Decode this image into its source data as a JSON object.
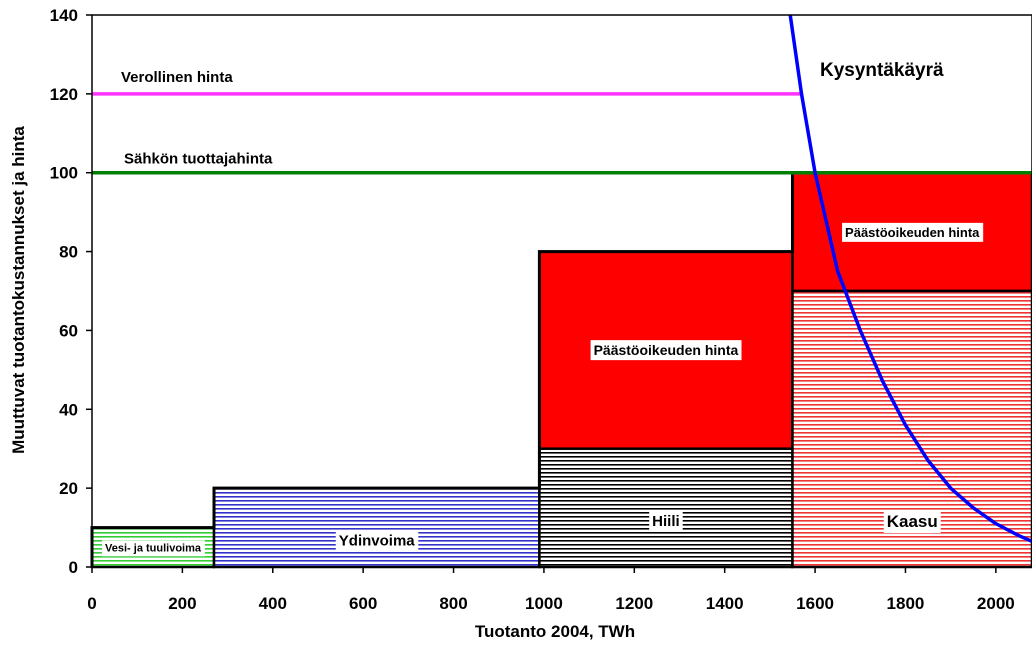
{
  "chart_data": {
    "type": "step-area",
    "xlabel": "Tuotanto 2004, TWh",
    "ylabel": "Muuttuvat tuotantokustannukset ja hinta",
    "xlim": [
      0,
      2080
    ],
    "ylim": [
      0,
      140
    ],
    "x_ticks": [
      0,
      200,
      400,
      600,
      800,
      1000,
      1200,
      1400,
      1600,
      1800,
      2000
    ],
    "y_ticks": [
      0,
      20,
      40,
      60,
      80,
      100,
      120,
      140
    ],
    "grid": false,
    "segments": [
      {
        "name": "Vesi- ja tuulivoima",
        "x0": 0,
        "x1": 270,
        "base": 10,
        "emission": 0,
        "color": "#33cc33",
        "base_label": "Vesi- ja tuulivoima",
        "emission_label": ""
      },
      {
        "name": "Ydinvoima",
        "x0": 270,
        "x1": 990,
        "base": 20,
        "emission": 0,
        "color": "#3333cc",
        "base_label": "Ydinvoima",
        "emission_label": ""
      },
      {
        "name": "Hiili",
        "x0": 990,
        "x1": 1550,
        "base": 30,
        "emission": 50,
        "color": "#000000",
        "base_label": "Hiili",
        "emission_label": "Päästöoikeuden hinta"
      },
      {
        "name": "Kaasu",
        "x0": 1550,
        "x1": 2080,
        "base": 70,
        "emission": 30,
        "color": "#ee3333",
        "base_label": "Kaasu",
        "emission_label": "Päästöoikeuden hinta"
      }
    ],
    "emission_color": "#ff0000",
    "lines": [
      {
        "label": "Verollinen hinta",
        "y": 120,
        "x0": 0,
        "x1": 1570,
        "color": "#ff33ff"
      },
      {
        "label": "Sähkön tuottajahinta",
        "y": 100,
        "x0": 0,
        "x1": 2080,
        "color": "#008000"
      }
    ],
    "demand_curve": {
      "label": "Kysyntäkäyrä",
      "color": "#0000ff",
      "points": [
        [
          1545,
          140
        ],
        [
          1570,
          120
        ],
        [
          1600,
          100
        ],
        [
          1620,
          90
        ],
        [
          1650,
          75
        ],
        [
          1700,
          60
        ],
        [
          1750,
          47
        ],
        [
          1800,
          36
        ],
        [
          1850,
          27
        ],
        [
          1900,
          20
        ],
        [
          1950,
          15
        ],
        [
          2000,
          11
        ],
        [
          2050,
          8
        ],
        [
          2080,
          6.5
        ]
      ]
    }
  }
}
